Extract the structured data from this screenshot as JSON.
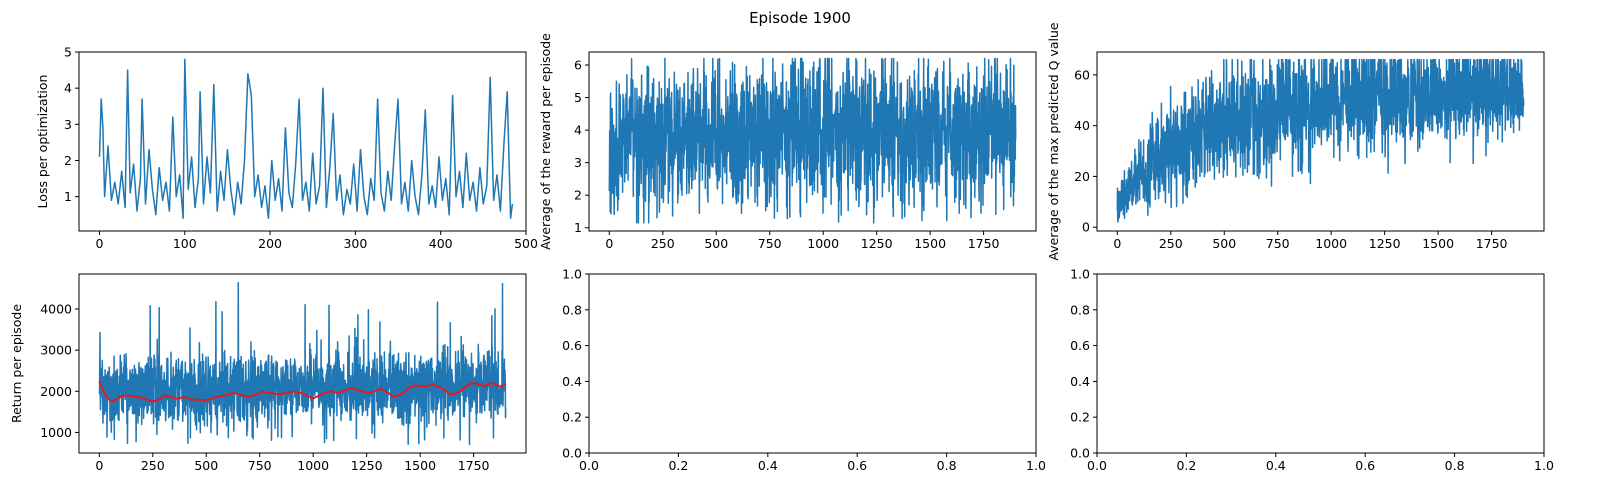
{
  "figure": {
    "suptitle": "Episode 1900"
  },
  "colors": {
    "series": "#1f77b4",
    "moving_avg": "#e41a1c",
    "axes": "#000000"
  },
  "chart_data": [
    {
      "id": "loss",
      "type": "line",
      "title": "",
      "xlabel": "",
      "ylabel": "Loss per optimization",
      "xlim": [
        -24,
        500
      ],
      "ylim": [
        0.05,
        5.0
      ],
      "xticks": [
        0,
        100,
        200,
        300,
        400,
        500
      ],
      "yticks": [
        1,
        2,
        3,
        4,
        5
      ],
      "grid": false,
      "series": [
        {
          "role": "raw",
          "color": "#1f77b4",
          "points": [
            [
              0,
              2.1
            ],
            [
              2,
              3.7
            ],
            [
              4,
              2.9
            ],
            [
              6,
              1.0
            ],
            [
              10,
              2.4
            ],
            [
              14,
              0.9
            ],
            [
              18,
              1.4
            ],
            [
              22,
              0.8
            ],
            [
              26,
              1.7
            ],
            [
              30,
              0.7
            ],
            [
              33,
              4.5
            ],
            [
              36,
              1.1
            ],
            [
              40,
              1.9
            ],
            [
              44,
              0.6
            ],
            [
              48,
              1.5
            ],
            [
              50,
              3.7
            ],
            [
              54,
              0.8
            ],
            [
              58,
              2.3
            ],
            [
              62,
              1.2
            ],
            [
              66,
              0.5
            ],
            [
              70,
              1.8
            ],
            [
              74,
              0.9
            ],
            [
              78,
              1.4
            ],
            [
              82,
              0.6
            ],
            [
              86,
              3.2
            ],
            [
              90,
              1.0
            ],
            [
              94,
              1.6
            ],
            [
              98,
              0.4
            ],
            [
              100,
              4.8
            ],
            [
              104,
              1.2
            ],
            [
              108,
              2.1
            ],
            [
              112,
              0.7
            ],
            [
              116,
              1.5
            ],
            [
              118,
              3.9
            ],
            [
              122,
              0.8
            ],
            [
              126,
              2.1
            ],
            [
              130,
              1.1
            ],
            [
              134,
              4.1
            ],
            [
              138,
              0.6
            ],
            [
              142,
              1.7
            ],
            [
              146,
              0.9
            ],
            [
              150,
              2.3
            ],
            [
              154,
              1.2
            ],
            [
              158,
              0.5
            ],
            [
              162,
              1.4
            ],
            [
              166,
              0.8
            ],
            [
              170,
              2.0
            ],
            [
              174,
              4.4
            ],
            [
              178,
              3.8
            ],
            [
              182,
              1.0
            ],
            [
              186,
              1.6
            ],
            [
              190,
              0.7
            ],
            [
              194,
              1.3
            ],
            [
              198,
              0.4
            ],
            [
              202,
              2.0
            ],
            [
              206,
              0.9
            ],
            [
              210,
              1.5
            ],
            [
              214,
              0.6
            ],
            [
              218,
              2.9
            ],
            [
              222,
              1.1
            ],
            [
              226,
              0.7
            ],
            [
              230,
              1.9
            ],
            [
              234,
              3.7
            ],
            [
              238,
              0.9
            ],
            [
              242,
              1.4
            ],
            [
              246,
              0.6
            ],
            [
              250,
              2.2
            ],
            [
              254,
              0.8
            ],
            [
              258,
              1.3
            ],
            [
              262,
              4.0
            ],
            [
              266,
              0.7
            ],
            [
              270,
              1.8
            ],
            [
              274,
              3.3
            ],
            [
              278,
              0.9
            ],
            [
              282,
              1.6
            ],
            [
              286,
              0.5
            ],
            [
              290,
              1.2
            ],
            [
              294,
              0.8
            ],
            [
              298,
              1.9
            ],
            [
              302,
              0.6
            ],
            [
              306,
              2.3
            ],
            [
              310,
              1.0
            ],
            [
              314,
              0.5
            ],
            [
              318,
              1.5
            ],
            [
              322,
              0.9
            ],
            [
              326,
              3.7
            ],
            [
              330,
              1.1
            ],
            [
              334,
              0.6
            ],
            [
              338,
              1.7
            ],
            [
              342,
              0.9
            ],
            [
              346,
              2.4
            ],
            [
              350,
              3.7
            ],
            [
              354,
              0.8
            ],
            [
              358,
              1.4
            ],
            [
              362,
              0.6
            ],
            [
              366,
              2.0
            ],
            [
              370,
              1.0
            ],
            [
              374,
              0.5
            ],
            [
              378,
              1.6
            ],
            [
              382,
              3.4
            ],
            [
              386,
              0.8
            ],
            [
              390,
              1.3
            ],
            [
              394,
              0.7
            ],
            [
              398,
              2.1
            ],
            [
              402,
              0.9
            ],
            [
              406,
              1.5
            ],
            [
              410,
              0.5
            ],
            [
              414,
              3.8
            ],
            [
              418,
              1.0
            ],
            [
              422,
              1.7
            ],
            [
              426,
              0.7
            ],
            [
              430,
              2.2
            ],
            [
              434,
              0.9
            ],
            [
              438,
              1.4
            ],
            [
              442,
              0.6
            ],
            [
              446,
              1.8
            ],
            [
              450,
              0.8
            ],
            [
              454,
              1.3
            ],
            [
              458,
              4.3
            ],
            [
              462,
              0.9
            ],
            [
              466,
              1.6
            ],
            [
              470,
              0.6
            ],
            [
              474,
              2.4
            ],
            [
              478,
              3.9
            ],
            [
              482,
              0.4
            ],
            [
              484,
              0.8
            ]
          ]
        }
      ]
    },
    {
      "id": "avg_reward",
      "type": "line",
      "title": "",
      "xlabel": "",
      "ylabel": "Average of the reward per episode",
      "xlim": [
        -95,
        1995
      ],
      "ylim": [
        0.9,
        6.4
      ],
      "xticks": [
        0,
        250,
        500,
        750,
        1000,
        1250,
        1500,
        1750
      ],
      "yticks": [
        1,
        2,
        3,
        4,
        5,
        6
      ],
      "grid": false,
      "series": [
        {
          "role": "raw",
          "color": "#1f77b4",
          "points": []
        }
      ]
    },
    {
      "id": "avg_max_q",
      "type": "line",
      "title": "",
      "xlabel": "",
      "ylabel": "Average of the max predicted Q value",
      "xlim": [
        -95,
        1995
      ],
      "ylim": [
        -1.5,
        69
      ],
      "xticks": [
        0,
        250,
        500,
        750,
        1000,
        1250,
        1500,
        1750
      ],
      "yticks": [
        0,
        20,
        40,
        60
      ],
      "grid": false,
      "series": [
        {
          "role": "raw",
          "color": "#1f77b4",
          "points": []
        }
      ]
    },
    {
      "id": "return",
      "type": "line",
      "title": "",
      "xlabel": "",
      "ylabel": "Return per episode",
      "xlim": [
        -95,
        1995
      ],
      "ylim": [
        500,
        4850
      ],
      "xticks": [
        0,
        250,
        500,
        750,
        1000,
        1250,
        1500,
        1750
      ],
      "yticks": [
        1000,
        2000,
        3000,
        4000
      ],
      "grid": false,
      "series": [
        {
          "role": "raw",
          "color": "#1f77b4",
          "points": []
        },
        {
          "role": "moving_average",
          "color": "#e41a1c",
          "points": [
            [
              0,
              2250
            ],
            [
              20,
              2000
            ],
            [
              40,
              1820
            ],
            [
              60,
              1760
            ],
            [
              80,
              1800
            ],
            [
              100,
              1880
            ],
            [
              130,
              1900
            ],
            [
              160,
              1870
            ],
            [
              190,
              1850
            ],
            [
              220,
              1800
            ],
            [
              250,
              1750
            ],
            [
              280,
              1800
            ],
            [
              300,
              1900
            ],
            [
              330,
              1860
            ],
            [
              360,
              1820
            ],
            [
              400,
              1860
            ],
            [
              430,
              1800
            ],
            [
              470,
              1790
            ],
            [
              500,
              1780
            ],
            [
              540,
              1850
            ],
            [
              570,
              1880
            ],
            [
              600,
              1920
            ],
            [
              630,
              1960
            ],
            [
              670,
              1900
            ],
            [
              700,
              1870
            ],
            [
              740,
              1930
            ],
            [
              760,
              2000
            ],
            [
              800,
              1950
            ],
            [
              840,
              1930
            ],
            [
              880,
              1960
            ],
            [
              910,
              2000
            ],
            [
              950,
              1940
            ],
            [
              980,
              1870
            ],
            [
              1000,
              1830
            ],
            [
              1030,
              1900
            ],
            [
              1060,
              1980
            ],
            [
              1090,
              2000
            ],
            [
              1120,
              1950
            ],
            [
              1150,
              2030
            ],
            [
              1180,
              2080
            ],
            [
              1200,
              2040
            ],
            [
              1230,
              2000
            ],
            [
              1260,
              1950
            ],
            [
              1290,
              2010
            ],
            [
              1320,
              2060
            ],
            [
              1350,
              1960
            ],
            [
              1380,
              1860
            ],
            [
              1420,
              1950
            ],
            [
              1450,
              2100
            ],
            [
              1480,
              2140
            ],
            [
              1520,
              2120
            ],
            [
              1560,
              2160
            ],
            [
              1600,
              2080
            ],
            [
              1640,
              1930
            ],
            [
              1680,
              1960
            ],
            [
              1710,
              2100
            ],
            [
              1740,
              2200
            ],
            [
              1770,
              2180
            ],
            [
              1800,
              2120
            ],
            [
              1830,
              2200
            ],
            [
              1860,
              2150
            ],
            [
              1880,
              2100
            ],
            [
              1900,
              2180
            ]
          ]
        }
      ]
    },
    {
      "id": "empty_1",
      "type": "line",
      "title": "",
      "xlabel": "",
      "ylabel": "",
      "xlim": [
        0,
        1
      ],
      "ylim": [
        0,
        1
      ],
      "xticks": [
        0.0,
        0.2,
        0.4,
        0.6,
        0.8,
        1.0
      ],
      "yticks": [
        0.0,
        0.2,
        0.4,
        0.6,
        0.8,
        1.0
      ],
      "tick_format": 1,
      "grid": false,
      "series": []
    },
    {
      "id": "empty_2",
      "type": "line",
      "title": "",
      "xlabel": "",
      "ylabel": "",
      "xlim": [
        0,
        1
      ],
      "ylim": [
        0,
        1
      ],
      "xticks": [
        0.0,
        0.2,
        0.4,
        0.6,
        0.8,
        1.0
      ],
      "yticks": [
        0.0,
        0.2,
        0.4,
        0.6,
        0.8,
        1.0
      ],
      "tick_format": 1,
      "grid": false,
      "series": []
    }
  ]
}
